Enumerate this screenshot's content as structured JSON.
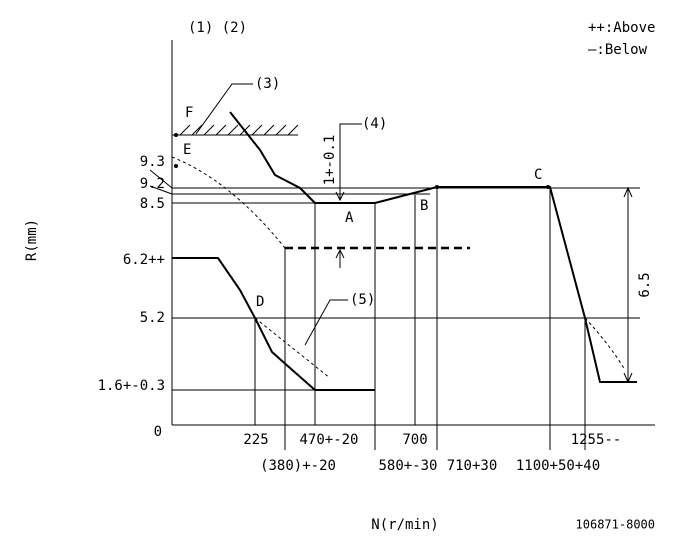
{
  "header": {
    "refs": "(1) (2)",
    "legend_above": "++:Above",
    "legend_below": "—:Below"
  },
  "axes": {
    "y_label": "R(mm)",
    "x_label": "N(r/min)",
    "origin": "0"
  },
  "callouts": {
    "c3": "(3)",
    "c4": "(4)",
    "c5": "(5)",
    "gap": "1+-0.1",
    "stroke": "6.5"
  },
  "points": {
    "F": "F",
    "E": "E",
    "A": "A",
    "B": "B",
    "C": "C",
    "D": "D"
  },
  "y_labels": [
    "9.3",
    "9.2",
    "8.5",
    "6.2++",
    "5.2",
    "1.6+-0.3"
  ],
  "x_labels_upper": [
    "225",
    "470+-20",
    "700",
    "1255--"
  ],
  "x_labels_lower": [
    "(380)+-20",
    "580+-30",
    "710+30",
    "1100+50+40"
  ],
  "drawing_no": "106871-8000"
}
